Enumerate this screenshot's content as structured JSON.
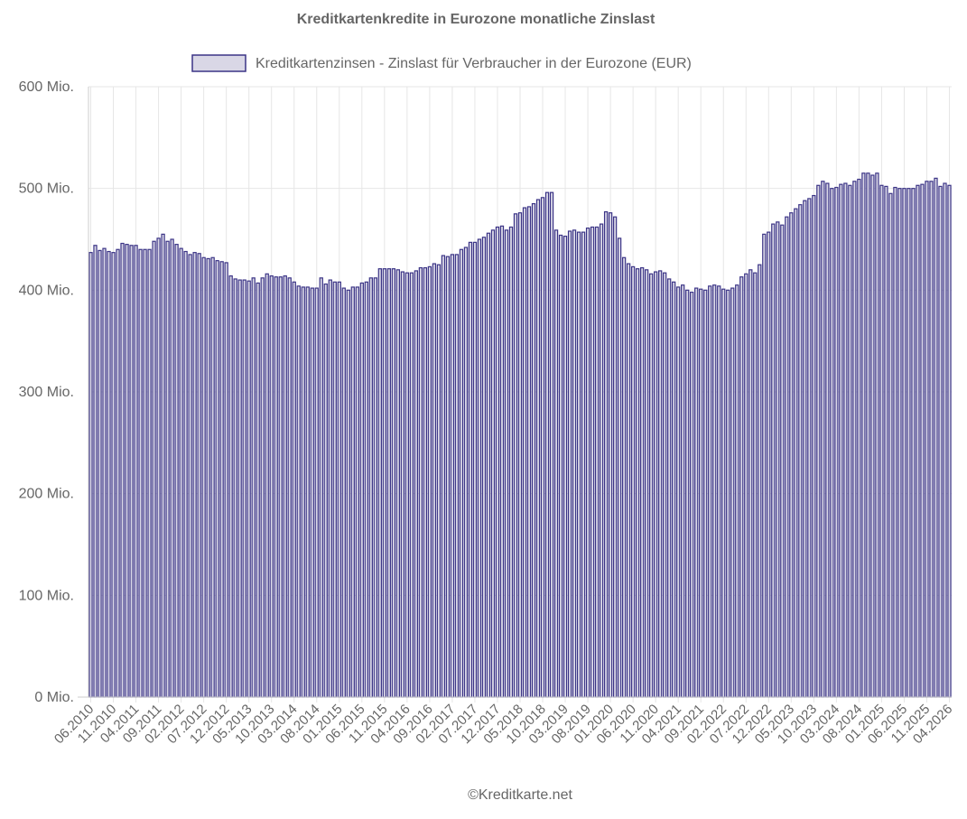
{
  "chart_data": {
    "type": "bar",
    "title": "Kreditkartenkredite in Eurozone monatliche Zinslast",
    "legend": {
      "position": "top-center",
      "entries": [
        "Kreditkartenzinsen - Zinslast für Verbraucher in der Eurozone (EUR)"
      ]
    },
    "footer": "©Kreditkarte.net",
    "xlabel": "",
    "ylabel": "",
    "ylim": [
      0,
      600
    ],
    "y_ticks": [
      0,
      100,
      200,
      300,
      400,
      500,
      600
    ],
    "y_tick_labels": [
      "0 Mio.",
      "100 Mio.",
      "200 Mio.",
      "300 Mio.",
      "400 Mio.",
      "500 Mio.",
      "600 Mio."
    ],
    "grid": true,
    "colors": {
      "bar_fill": "#d9d7e6",
      "bar_stroke": "#3b3486",
      "text": "#666666",
      "grid": "#e6e6e6"
    },
    "x_ticks": [
      "06.2010",
      "11.2010",
      "04.2011",
      "09.2011",
      "02.2012",
      "07.2012",
      "12.2012",
      "05.2013",
      "10.2013",
      "03.2014",
      "08.2014",
      "01.2015",
      "06.2015",
      "11.2015",
      "04.2016",
      "09.2016",
      "02.2017",
      "07.2017",
      "12.2017",
      "05.2018",
      "10.2018",
      "03.2019",
      "08.2019",
      "01.2020",
      "06.2020",
      "11.2020",
      "04.2021",
      "09.2021",
      "02.2022",
      "07.2022",
      "12.2022",
      "05.2023",
      "10.2023",
      "03.2024",
      "08.2024",
      "01.2025",
      "06.2025",
      "11.2025",
      "04.2026"
    ],
    "series": [
      {
        "name": "Kreditkartenzinsen - Zinslast für Verbraucher in der Eurozone (EUR)",
        "start": "06.2010",
        "unit": "Mio. EUR",
        "values": [
          437,
          444,
          439,
          441,
          438,
          437,
          440,
          446,
          445,
          444,
          444,
          440,
          440,
          440,
          448,
          451,
          455,
          448,
          450,
          445,
          441,
          438,
          435,
          437,
          436,
          432,
          431,
          432,
          429,
          428,
          427,
          414,
          411,
          410,
          410,
          409,
          412,
          407,
          412,
          416,
          414,
          413,
          413,
          414,
          412,
          408,
          404,
          403,
          403,
          402,
          402,
          412,
          406,
          410,
          408,
          408,
          402,
          400,
          403,
          403,
          407,
          408,
          412,
          412,
          421,
          421,
          421,
          421,
          420,
          418,
          417,
          417,
          419,
          422,
          422,
          423,
          426,
          425,
          434,
          433,
          435,
          435,
          440,
          442,
          447,
          447,
          450,
          452,
          456,
          459,
          462,
          463,
          459,
          462,
          475,
          476,
          481,
          482,
          485,
          489,
          491,
          496,
          496,
          459,
          454,
          453,
          458,
          459,
          457,
          457,
          461,
          462,
          462,
          465,
          477,
          476,
          472,
          451,
          432,
          426,
          423,
          421,
          422,
          420,
          416,
          418,
          419,
          417,
          411,
          408,
          403,
          405,
          400,
          398,
          402,
          401,
          400,
          404,
          405,
          404,
          401,
          400,
          402,
          405,
          413,
          416,
          420,
          417,
          425,
          455,
          457,
          465,
          467,
          464,
          472,
          476,
          480,
          484,
          488,
          490,
          493,
          503,
          507,
          505,
          500,
          501,
          504,
          505,
          503,
          507,
          509,
          515,
          515,
          513,
          515,
          503,
          502,
          495,
          501,
          500,
          500,
          500,
          500,
          503,
          504,
          507,
          507,
          510,
          502,
          505,
          503
        ]
      }
    ]
  }
}
